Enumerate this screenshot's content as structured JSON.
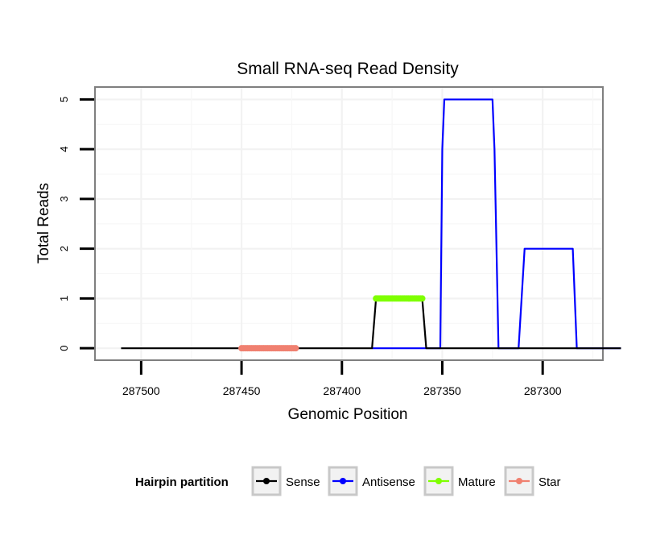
{
  "chart_data": {
    "type": "line",
    "title": "Small RNA-seq Read Density",
    "xlabel": "Genomic Position",
    "ylabel": "Total Reads",
    "x_reversed": true,
    "xlim": [
      287523,
      287270
    ],
    "ylim": [
      -0.24,
      5.25
    ],
    "x_ticks": [
      287500,
      287450,
      287400,
      287350,
      287300
    ],
    "x_tick_labels": [
      "287500",
      "287450",
      "287400",
      "287350",
      "287300"
    ],
    "y_ticks": [
      0,
      1,
      2,
      3,
      4,
      5
    ],
    "y_tick_labels": [
      "0",
      "1",
      "2",
      "3",
      "4",
      "5"
    ],
    "grid": true,
    "legend": {
      "title": "Hairpin partition",
      "position": "bottom",
      "entries": [
        "Sense",
        "Antisense",
        "Mature",
        "Star"
      ]
    },
    "series": [
      {
        "name": "Sense",
        "color": "#000000",
        "style": "line",
        "points": [
          [
            287510,
            0
          ],
          [
            287385,
            0
          ],
          [
            287383,
            1
          ],
          [
            287360,
            1
          ],
          [
            287358,
            0
          ],
          [
            287261,
            0
          ]
        ]
      },
      {
        "name": "Antisense",
        "color": "#0000ff",
        "style": "line",
        "points": [
          [
            287385,
            0
          ],
          [
            287351,
            0
          ],
          [
            287350,
            4
          ],
          [
            287349,
            5
          ],
          [
            287325,
            5
          ],
          [
            287324,
            4
          ],
          [
            287322,
            0
          ],
          [
            287312,
            0
          ],
          [
            287309,
            2
          ],
          [
            287285,
            2
          ],
          [
            287283,
            0
          ],
          [
            287261,
            0
          ]
        ]
      },
      {
        "name": "Mature",
        "color": "#7fff00",
        "style": "line-points",
        "x_range": [
          287383,
          287360
        ],
        "y": 1
      },
      {
        "name": "Star",
        "color": "#f08070",
        "style": "line-points",
        "x_range": [
          287450,
          287423
        ],
        "y": 0
      }
    ]
  }
}
